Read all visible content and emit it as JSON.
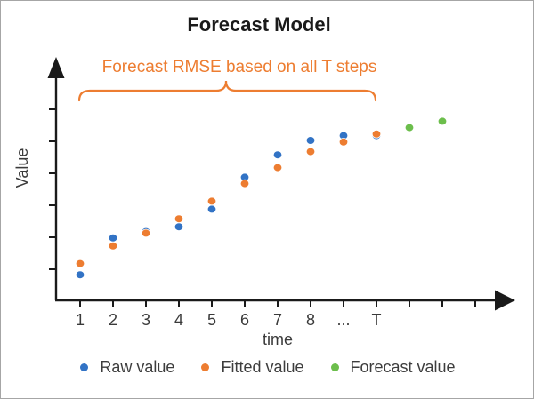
{
  "chart_data": {
    "type": "scatter",
    "title": "Forecast Model",
    "annotation": "Forecast RMSE based on all T steps",
    "annotation_color": "#ED7D31",
    "xlabel": "time",
    "ylabel": "Value",
    "axis_color": "#1a1a1a",
    "tick_label_color": "#3a3a3a",
    "x_ticks": [
      "1",
      "2",
      "3",
      "4",
      "5",
      "6",
      "7",
      "8",
      "...",
      "T",
      "",
      "",
      ""
    ],
    "y_tick_count": 6,
    "y_ticks_labeled": false,
    "series": [
      {
        "name": "Raw value",
        "color": "#3273C5",
        "x": [
          1,
          2,
          3,
          4,
          5,
          6,
          7,
          8,
          9,
          10
        ],
        "y": [
          0.8,
          1.95,
          2.15,
          2.3,
          2.85,
          3.85,
          4.55,
          5.0,
          5.15,
          5.15
        ]
      },
      {
        "name": "Fitted value",
        "color": "#ED7D31",
        "x": [
          1,
          2,
          3,
          4,
          5,
          6,
          7,
          8,
          9,
          10
        ],
        "y": [
          1.15,
          1.7,
          2.1,
          2.55,
          3.1,
          3.65,
          4.15,
          4.65,
          4.95,
          5.2
        ]
      },
      {
        "name": "Forecast value",
        "color": "#6CBE4C",
        "x": [
          11,
          12
        ],
        "y": [
          5.4,
          5.6
        ]
      }
    ],
    "brace_span_ticks": [
      "1",
      "T"
    ]
  },
  "legend": {
    "items": [
      "Raw value",
      "Fitted value",
      "Forecast value"
    ]
  }
}
